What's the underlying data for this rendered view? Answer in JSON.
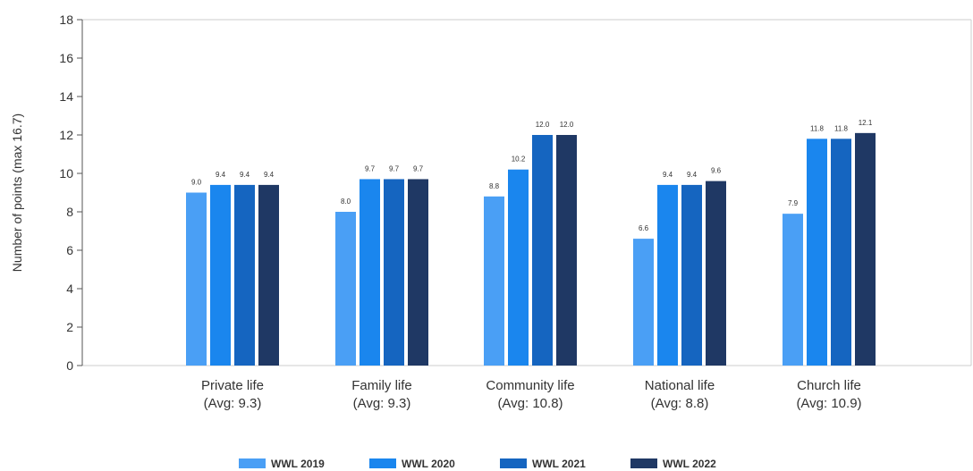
{
  "chart_data": {
    "type": "bar",
    "ylabel": "Number of points (max 16.7)",
    "ylim": [
      0,
      18
    ],
    "yticks": [
      0,
      2,
      4,
      6,
      8,
      10,
      12,
      14,
      16,
      18
    ],
    "categories": [
      [
        "Private life",
        "(Avg: 9.3)"
      ],
      [
        "Family life",
        "(Avg: 9.3)"
      ],
      [
        "Community life",
        "(Avg: 10.8)"
      ],
      [
        "National life",
        "(Avg: 8.8)"
      ],
      [
        "Church life",
        "(Avg: 10.9)"
      ]
    ],
    "series": [
      {
        "name": "WWL 2019",
        "color": "#4a9ff5",
        "values": [
          9.0,
          8.0,
          8.8,
          6.6,
          7.9
        ]
      },
      {
        "name": "WWL 2020",
        "color": "#1a86ee",
        "values": [
          9.4,
          9.7,
          10.2,
          9.4,
          11.8
        ]
      },
      {
        "name": "WWL 2021",
        "color": "#1565c0",
        "values": [
          9.4,
          9.7,
          12.0,
          9.4,
          11.8
        ]
      },
      {
        "name": "WWL 2022",
        "color": "#1f3864",
        "values": [
          9.4,
          9.7,
          12.0,
          9.6,
          12.1
        ]
      }
    ],
    "grid": false,
    "legend": "bottom"
  }
}
